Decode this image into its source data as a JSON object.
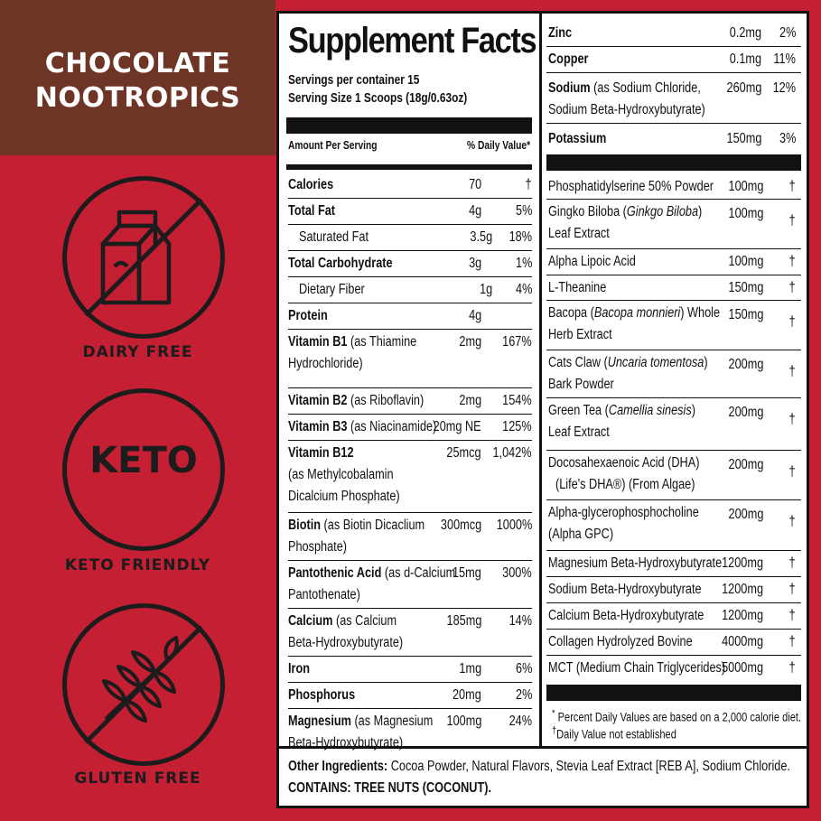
{
  "banner": {
    "line1": "CHOCOLATE",
    "line2": "NOOTROPICS"
  },
  "badges": {
    "dairy": {
      "label": "DAIRY FREE",
      "icon": "milk-carton-icon"
    },
    "keto": {
      "text": "KETO",
      "label": "KETO FRIENDLY"
    },
    "gluten": {
      "label": "GLUTEN FREE",
      "icon": "wheat-icon"
    }
  },
  "facts": {
    "title": "Supplement Facts",
    "servings": "Servings per container 15",
    "serving_size": "Serving Size 1 Scoops (18g/0.63oz)",
    "amount_header": "Amount Per Serving",
    "dv_header": "% Daily Value*",
    "left_rows": [
      {
        "name": "Calories",
        "sub": "",
        "line2": "",
        "amount": "70",
        "dv": "†"
      },
      {
        "name": "Total Fat",
        "sub": "",
        "line2": "",
        "amount": "4g",
        "dv": "5%"
      },
      {
        "name": "Saturated Fat",
        "sub": "",
        "line2": "",
        "amount": "3.5g",
        "dv": "18%"
      },
      {
        "name": "Total Carbohydrate",
        "sub": "",
        "line2": "",
        "amount": "3g",
        "dv": "1%"
      },
      {
        "name": "Dietary Fiber",
        "sub": "",
        "line2": "",
        "amount": "1g",
        "dv": "4%"
      },
      {
        "name": "Protein",
        "sub": "",
        "line2": "",
        "amount": "4g",
        "dv": ""
      },
      {
        "name": "Vitamin B1",
        "sub": " (as Thiamine",
        "line2": "Hydrochloride)",
        "amount": "2mg",
        "dv": "167%"
      },
      {
        "name": "Vitamin B2",
        "sub": " (as Riboflavin)",
        "line2": "",
        "amount": "2mg",
        "dv": "154%"
      },
      {
        "name": "Vitamin B3",
        "sub": " (as Niacinamide)",
        "line2": "",
        "amount": "20mg NE",
        "dv": "125%"
      },
      {
        "name": "Vitamin B12",
        "sub": "",
        "line2": "(as Methylcobalamin",
        "line3": "Dicalcium Phosphate)",
        "amount": "25mcg",
        "dv": "1,042%"
      },
      {
        "name": "Biotin",
        "sub": " (as Biotin Dicaclium",
        "line2": "Phosphate)",
        "amount": "300mcg",
        "dv": "1000%"
      },
      {
        "name": "Pantothenic Acid",
        "sub": " (as d-Calcium",
        "line2": "Pantothenate)",
        "amount": "15mg",
        "dv": "300%"
      },
      {
        "name": "Calcium",
        "sub": " (as Calcium",
        "line2": "Beta-Hydroxybutyrate)",
        "amount": "185mg",
        "dv": "14%"
      },
      {
        "name": "Iron",
        "sub": "",
        "line2": "",
        "amount": "1mg",
        "dv": "6%"
      },
      {
        "name": "Phosphorus",
        "sub": "",
        "line2": "",
        "amount": "20mg",
        "dv": "2%"
      },
      {
        "name": "Magnesium",
        "sub": " (as Magnesium",
        "line2": "Beta-Hydroxybutyrate)",
        "amount": "100mg",
        "dv": "24%"
      }
    ],
    "right_top_rows": [
      {
        "name": "Zinc",
        "sub": "",
        "line2": "",
        "amount": "0.2mg",
        "dv": "2%"
      },
      {
        "name": "Copper",
        "sub": "",
        "line2": "",
        "amount": "0.1mg",
        "dv": "11%"
      },
      {
        "name": "Sodium",
        "sub": " (as Sodium Chloride,",
        "line2": "Sodium Beta-Hydroxybutyrate)",
        "amount": "260mg",
        "dv": "12%"
      },
      {
        "name": "Potassium",
        "sub": "",
        "line2": "",
        "amount": "150mg",
        "dv": "3%"
      }
    ],
    "right_rows": [
      {
        "pre": "Phosphatidylserine 50% Powder",
        "ital": "",
        "post": "",
        "line2": "",
        "amount": "100mg",
        "dv": "†"
      },
      {
        "pre": "Gingko Biloba (",
        "ital": "Ginkgo Biloba",
        "post": ")",
        "line2": "Leaf Extract",
        "amount": "100mg",
        "dv": "†"
      },
      {
        "pre": "Alpha Lipoic Acid",
        "ital": "",
        "post": "",
        "line2": "",
        "amount": "100mg",
        "dv": "†"
      },
      {
        "pre": "L-Theanine",
        "ital": "",
        "post": "",
        "line2": "",
        "amount": "150mg",
        "dv": "†"
      },
      {
        "pre": "Bacopa (",
        "ital": "Bacopa monnieri",
        "post": ") Whole",
        "line2": "Herb Extract",
        "amount": "150mg",
        "dv": "†"
      },
      {
        "pre": "Cats Claw (",
        "ital": "Uncaria tomentosa",
        "post": ")",
        "line2": "Bark Powder",
        "amount": "200mg",
        "dv": "†"
      },
      {
        "pre": "Green Tea (",
        "ital": "Camellia sinesis",
        "post": ")",
        "line2": "Leaf Extract",
        "amount": "200mg",
        "dv": "†"
      },
      {
        "pre": "Docosahexaenoic Acid (DHA)",
        "ital": "",
        "post": "",
        "line2": "(Life's DHA®) (From Algae)",
        "amount": "200mg",
        "dv": "†"
      },
      {
        "pre": "Alpha-glycerophosphocholine",
        "ital": "",
        "post": "",
        "line2": "(Alpha GPC)",
        "amount": "200mg",
        "dv": "†"
      },
      {
        "pre": "Magnesium Beta-Hydroxybutyrate",
        "ital": "",
        "post": "",
        "line2": "",
        "amount": "1200mg",
        "dv": "†"
      },
      {
        "pre": "Sodium Beta-Hydroxybutyrate",
        "ital": "",
        "post": "",
        "line2": "",
        "amount": "1200mg",
        "dv": "†"
      },
      {
        "pre": "Calcium Beta-Hydroxybutyrate",
        "ital": "",
        "post": "",
        "line2": "",
        "amount": "1200mg",
        "dv": "†"
      },
      {
        "pre": "Collagen Hydrolyzed Bovine",
        "ital": "",
        "post": "",
        "line2": "",
        "amount": "4000mg",
        "dv": "†"
      },
      {
        "pre": "MCT (Medium Chain Triglycerides)",
        "ital": "",
        "post": "",
        "line2": "",
        "amount": "5000mg",
        "dv": "†"
      }
    ],
    "footnote1_mark": "*",
    "footnote1": " Percent Daily Values are based on a 2,000 calorie diet.",
    "footnote2_mark": "†",
    "footnote2": "Daily Value not established",
    "other_label": "Other Ingredients:",
    "other_text": " Cocoa Powder, Natural Flavors, Stevia Leaf Extract [REB A], Sodium Chloride.",
    "contains": "CONTAINS: TREE NUTS (COCONUT)."
  }
}
